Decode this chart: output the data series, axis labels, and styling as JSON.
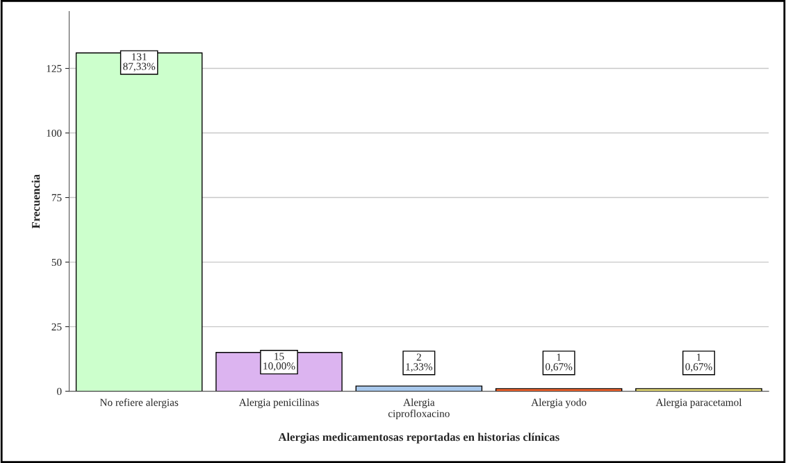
{
  "chart_data": {
    "type": "bar",
    "xlabel": "Alergias medicamentosas reportadas en historias clínicas",
    "ylabel": "Frecuencia",
    "categories": [
      "No refiere alergias",
      "Alergia penicilinas",
      "Alergia\nciprofloxacino",
      "Alergia yodo",
      "Alergia paracetamol"
    ],
    "values": [
      131,
      15,
      2,
      1,
      1
    ],
    "colors": [
      "#ccffcc",
      "#dcb4f0",
      "#a8c8ec",
      "#ff6a30",
      "#ece27a"
    ],
    "value_labels": [
      "131\n87,33%",
      "15\n10,00%",
      "2\n1,33%",
      "1\n0,67%",
      "1\n0,67%"
    ],
    "ylim": [
      0,
      147
    ],
    "yticks": [
      0,
      25,
      50,
      75,
      100,
      125
    ],
    "grid": "y",
    "legend": false
  }
}
